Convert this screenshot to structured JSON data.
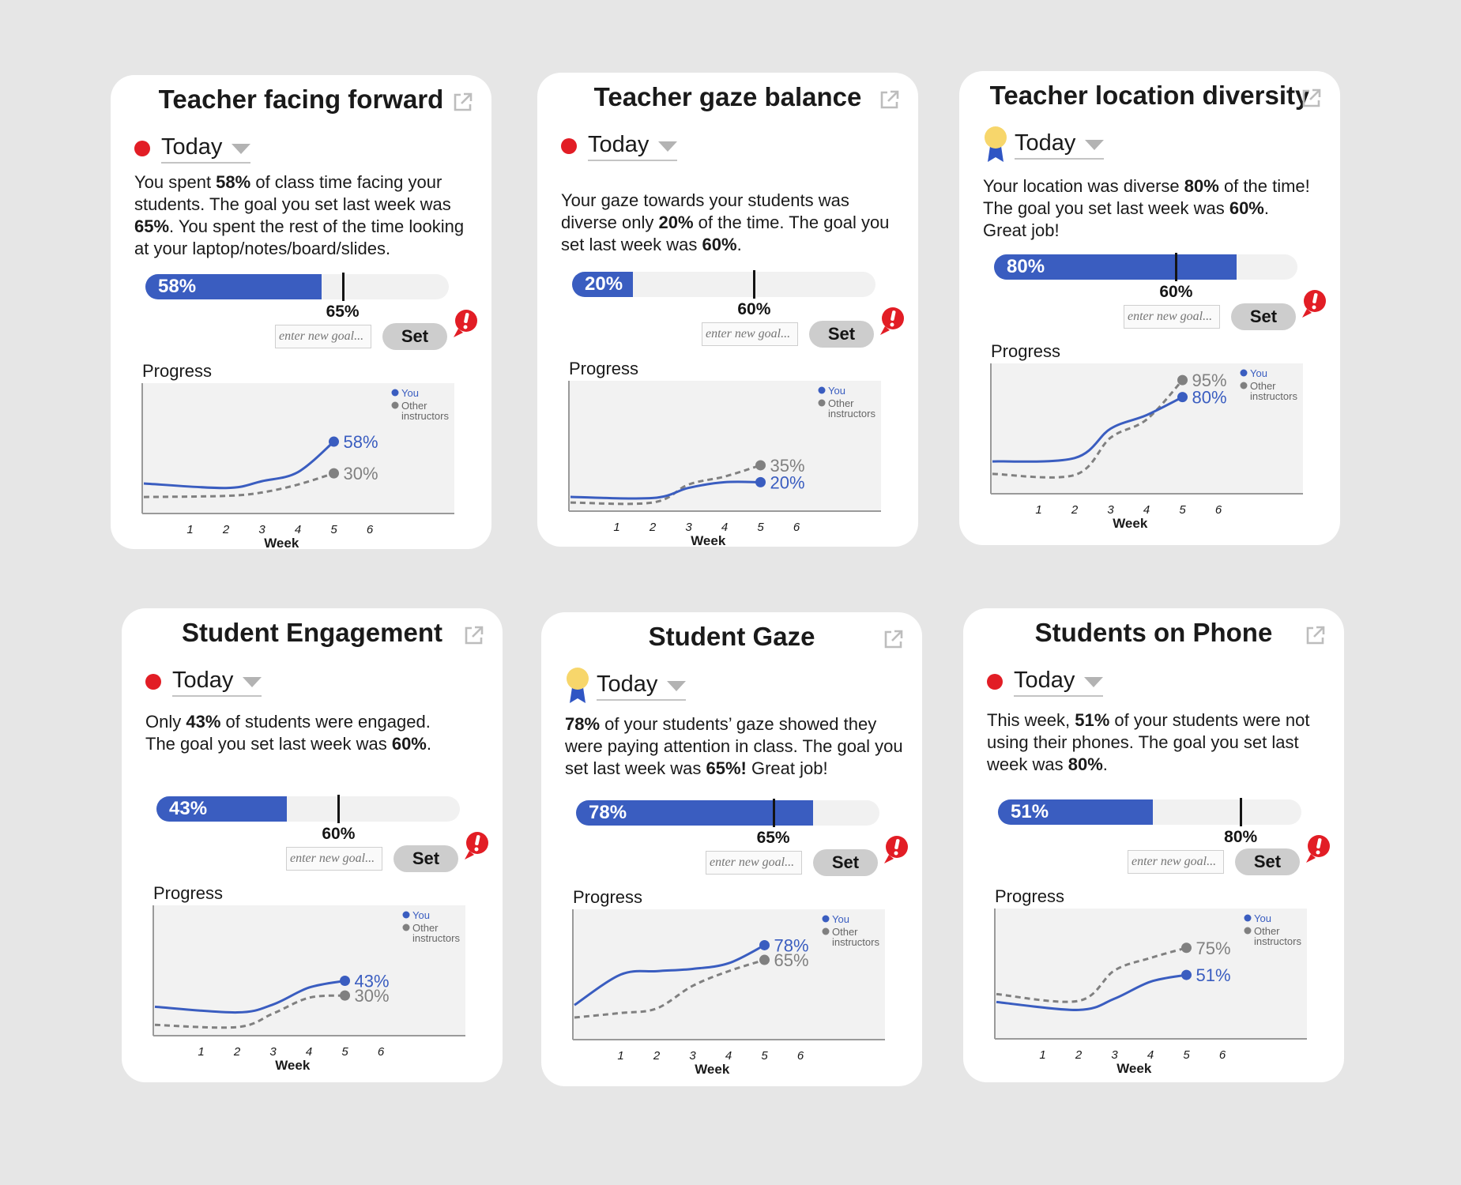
{
  "colors": {
    "you": "#3a5dc0",
    "other": "#808080",
    "alert": "#e21d25",
    "bar_fill": "#3a5dc0",
    "award": "#f7d66b"
  },
  "legend": {
    "you": "You",
    "other_line1": "Other",
    "other_line2": "instructors"
  },
  "progress_label": "Progress",
  "week_label": "Week",
  "goal_placeholder": "enter new goal...",
  "set_label": "Set",
  "cards": [
    {
      "title": "Teacher facing forward",
      "status": "alert",
      "today": "Today",
      "desc": [
        [
          {
            "t": "You spent "
          },
          {
            "t": "58%",
            "b": true
          },
          {
            "t": " of class time facing your"
          }
        ],
        [
          {
            "t": "students. The goal you set last week was"
          }
        ],
        [
          {
            "t": "65%",
            "b": true
          },
          {
            "t": ". You spent the rest of the time looking"
          }
        ],
        [
          {
            "t": "at your laptop/notes/board/slides."
          }
        ]
      ],
      "value": 58,
      "value_label": "58%",
      "goal": 65,
      "goal_label": "65%",
      "chart_data": {
        "type": "line",
        "x": [
          1,
          2,
          3,
          4,
          5
        ],
        "xlabel": "Week",
        "x_ticks": [
          "1",
          "2",
          "3",
          "4",
          "5",
          "6"
        ],
        "series": [
          {
            "name": "You",
            "values": [
              21,
              17,
              23,
              31,
              58
            ],
            "end_label": "58%"
          },
          {
            "name": "Other instructors",
            "values": [
              9,
              10,
              13,
              20,
              30
            ],
            "end_label": "30%"
          }
        ],
        "ylim": [
          0,
          100
        ]
      }
    },
    {
      "title": "Teacher gaze balance",
      "status": "alert",
      "today": "Today",
      "desc": [
        [
          {
            "t": "Your gaze towards your students was"
          }
        ],
        [
          {
            "t": "diverse only "
          },
          {
            "t": "20%",
            "b": true
          },
          {
            "t": " of the time. The goal you"
          }
        ],
        [
          {
            "t": "set last week was "
          },
          {
            "t": "60%",
            "b": true
          },
          {
            "t": "."
          }
        ]
      ],
      "value": 20,
      "value_label": "20%",
      "goal": 60,
      "goal_label": "60%",
      "chart_data": {
        "type": "line",
        "x": [
          1,
          2,
          3,
          4,
          5
        ],
        "xlabel": "Week",
        "x_ticks": [
          "1",
          "2",
          "3",
          "4",
          "5",
          "6"
        ],
        "series": [
          {
            "name": "You",
            "values": [
              7,
              6,
              15,
              20,
              20
            ],
            "end_label": "20%"
          },
          {
            "name": "Other instructors",
            "values": [
              2,
              2,
              18,
              25,
              35
            ],
            "end_label": "35%"
          }
        ],
        "ylim": [
          0,
          100
        ]
      }
    },
    {
      "title": "Teacher location diversity",
      "status": "award",
      "today": "Today",
      "desc": [
        [
          {
            "t": "Your location was diverse "
          },
          {
            "t": "80%",
            "b": true
          },
          {
            "t": " of the time!"
          }
        ],
        [
          {
            "t": "The goal you set last week was "
          },
          {
            "t": "60%",
            "b": true
          },
          {
            "t": "."
          }
        ],
        [
          {
            "t": "Great job!"
          }
        ]
      ],
      "value": 80,
      "value_label": "80%",
      "goal": 60,
      "goal_label": "60%",
      "chart_data": {
        "type": "line",
        "x": [
          1,
          2,
          3,
          4,
          5
        ],
        "xlabel": "Week",
        "x_ticks": [
          "1",
          "2",
          "3",
          "4",
          "5",
          "6"
        ],
        "series": [
          {
            "name": "You",
            "values": [
              23,
              26,
              52,
              64,
              80
            ],
            "end_label": "80%"
          },
          {
            "name": "Other instructors",
            "values": [
              12,
              11,
              44,
              60,
              95
            ],
            "end_label": "95%"
          }
        ],
        "ylim": [
          0,
          100
        ]
      }
    },
    {
      "title": "Student Engagement",
      "status": "alert",
      "today": "Today",
      "desc": [
        [
          {
            "t": "Only "
          },
          {
            "t": "43%",
            "b": true
          },
          {
            "t": " of students were engaged."
          }
        ],
        [
          {
            "t": "The goal you set last week was "
          },
          {
            "t": "60%",
            "b": true
          },
          {
            "t": "."
          }
        ]
      ],
      "value": 43,
      "value_label": "43%",
      "goal": 60,
      "goal_label": "60%",
      "chart_data": {
        "type": "line",
        "x": [
          1,
          2,
          3,
          4,
          5
        ],
        "xlabel": "Week",
        "x_ticks": [
          "1",
          "2",
          "3",
          "4",
          "5",
          "6"
        ],
        "series": [
          {
            "name": "You",
            "values": [
              20,
              15,
              22,
              37,
              43
            ],
            "end_label": "43%"
          },
          {
            "name": "Other instructors",
            "values": [
              4,
              2,
              14,
              28,
              30
            ],
            "end_label": "30%"
          }
        ],
        "ylim": [
          0,
          100
        ]
      }
    },
    {
      "title": "Student Gaze",
      "status": "award",
      "today": "Today",
      "desc": [
        [
          {
            "t": "78%",
            "b": true
          },
          {
            "t": " of your students’ gaze showed they"
          }
        ],
        [
          {
            "t": "were paying attention in class. The goal you"
          }
        ],
        [
          {
            "t": "set last week was "
          },
          {
            "t": "65%!",
            "b": true
          },
          {
            "t": " Great job!"
          }
        ]
      ],
      "value": 78,
      "value_label": "78%",
      "goal": 65,
      "goal_label": "65%",
      "chart_data": {
        "type": "line",
        "x": [
          0,
          1,
          2,
          3,
          4,
          5
        ],
        "xlabel": "Week",
        "x_ticks": [
          "1",
          "2",
          "3",
          "4",
          "5",
          "6"
        ],
        "series": [
          {
            "name": "You",
            "values": [
              25,
              52,
              55,
              57,
              62,
              78
            ],
            "end_label": "78%"
          },
          {
            "name": "Other instructors",
            "values": [
              14,
              18,
              22,
              42,
              55,
              65
            ],
            "end_label": "65%"
          }
        ],
        "ylim": [
          0,
          100
        ]
      }
    },
    {
      "title": "Students on Phone",
      "status": "alert",
      "today": "Today",
      "desc": [
        [
          {
            "t": "This week, "
          },
          {
            "t": "51%",
            "b": true
          },
          {
            "t": " of your students were not"
          }
        ],
        [
          {
            "t": "using their phones. The goal you set last"
          }
        ],
        [
          {
            "t": "week was "
          },
          {
            "t": "80%",
            "b": true
          },
          {
            "t": "."
          }
        ]
      ],
      "value": 51,
      "value_label": "51%",
      "goal": 80,
      "goal_label": "80%",
      "chart_data": {
        "type": "line",
        "x": [
          1,
          2,
          3,
          4,
          5
        ],
        "xlabel": "Week",
        "x_ticks": [
          "1",
          "2",
          "3",
          "4",
          "5",
          "6"
        ],
        "series": [
          {
            "name": "You",
            "values": [
              27,
              20,
              30,
              45,
              51
            ],
            "end_label": "51%"
          },
          {
            "name": "Other instructors",
            "values": [
              34,
              28,
              55,
              66,
              75
            ],
            "end_label": "75%"
          }
        ],
        "ylim": [
          0,
          100
        ]
      }
    }
  ]
}
